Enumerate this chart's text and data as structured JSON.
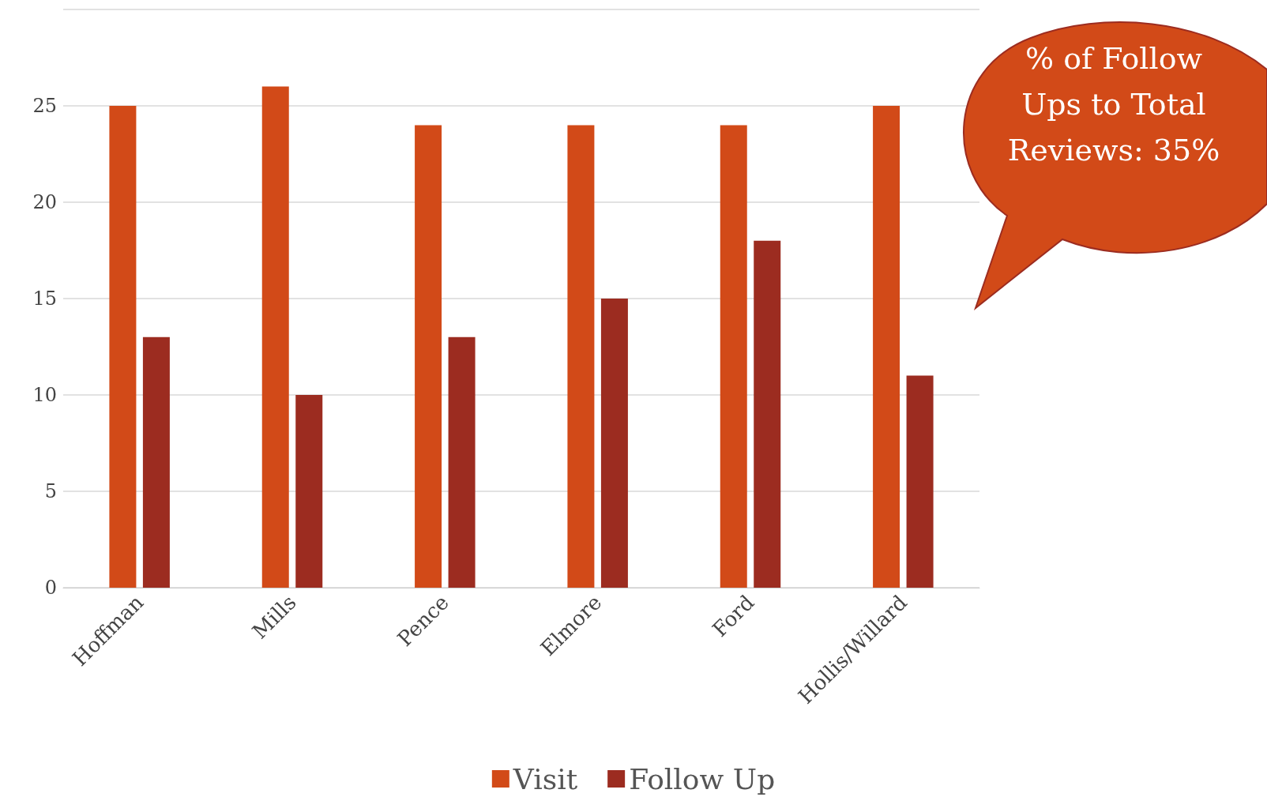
{
  "chart_data": {
    "type": "bar",
    "categories": [
      "Hoffman",
      "Mills",
      "Pence",
      "Elmore",
      "Ford",
      "Hollis/Willard"
    ],
    "series": [
      {
        "name": "Visit",
        "color": "#d24a18",
        "values": [
          25,
          26,
          24,
          24,
          24,
          25
        ]
      },
      {
        "name": "Follow Up",
        "color": "#9c2c20",
        "values": [
          13,
          10,
          13,
          15,
          18,
          11
        ]
      }
    ],
    "ylim": [
      0,
      30
    ],
    "yticks": [
      0,
      5,
      10,
      15,
      20,
      25,
      {
        "value": 30,
        "label": null
      }
    ],
    "grid": "y",
    "legend": "bottom",
    "annotations": [
      "% of Follow Ups to Total Reviews: 35%"
    ]
  }
}
